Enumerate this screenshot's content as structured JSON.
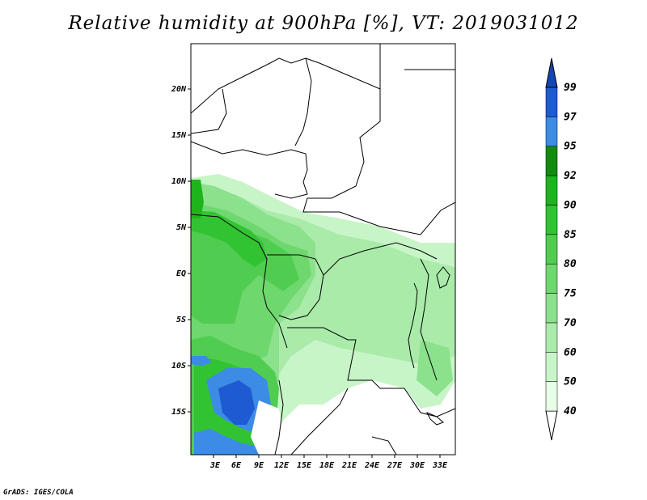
{
  "title": "Relative humidity at 900hPa [%], VT: 2019031012",
  "credit": "GrADS: IGES/COLA",
  "map": {
    "lat_labels": [
      "20N",
      "15N",
      "10N",
      "5N",
      "EQ",
      "5S",
      "10S",
      "15S"
    ],
    "lon_labels": [
      "3E",
      "6E",
      "9E",
      "12E",
      "15E",
      "18E",
      "21E",
      "24E",
      "27E",
      "30E",
      "33E"
    ]
  },
  "colorbar": {
    "levels": [
      "40",
      "50",
      "60",
      "70",
      "75",
      "80",
      "85",
      "90",
      "92",
      "95",
      "97",
      "99"
    ],
    "colors": [
      "#ffffff",
      "#e6ffe6",
      "#c8f5c8",
      "#aaebaa",
      "#8ce18c",
      "#6ed76e",
      "#50cd50",
      "#32c332",
      "#1eb41e",
      "#118c11",
      "#3c8ce6",
      "#1e5ad2",
      "#1446b4"
    ]
  }
}
